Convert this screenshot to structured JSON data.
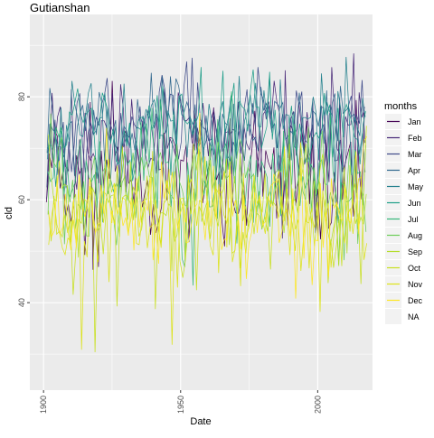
{
  "chart_data": {
    "type": "line",
    "title": "Gutianshan",
    "xlabel": "Date",
    "ylabel": "cld",
    "x_range": [
      1895,
      2020
    ],
    "ylim": [
      23,
      96
    ],
    "x_ticks": [
      1900,
      1950,
      2000
    ],
    "y_ticks": [
      40,
      60,
      80
    ],
    "grid": true,
    "legend_position": "right",
    "legend_title": "months",
    "series": [
      {
        "name": "Jan",
        "color": "#440154",
        "base": 64,
        "amp": 10
      },
      {
        "name": "Feb",
        "color": "#482878",
        "base": 72,
        "amp": 9
      },
      {
        "name": "Mar",
        "color": "#3E4A89",
        "base": 74,
        "amp": 8
      },
      {
        "name": "Apr",
        "color": "#31688E",
        "base": 75,
        "amp": 7
      },
      {
        "name": "May",
        "color": "#26828E",
        "base": 75,
        "amp": 7
      },
      {
        "name": "Jun",
        "color": "#1F9E89",
        "base": 74,
        "amp": 8
      },
      {
        "name": "Jul",
        "color": "#35B779",
        "base": 65,
        "amp": 8
      },
      {
        "name": "Aug",
        "color": "#6DCD59",
        "base": 63,
        "amp": 8
      },
      {
        "name": "Sep",
        "color": "#B4DE2C",
        "base": 60,
        "amp": 9
      },
      {
        "name": "Oct",
        "color": "#C8E020",
        "base": 57,
        "amp": 10
      },
      {
        "name": "Nov",
        "color": "#DCE319",
        "base": 56,
        "amp": 10
      },
      {
        "name": "Dec",
        "color": "#FDE725",
        "base": 58,
        "amp": 10
      },
      {
        "name": "NA",
        "color": "#7F7F7F",
        "base": null,
        "amp": null
      }
    ]
  }
}
